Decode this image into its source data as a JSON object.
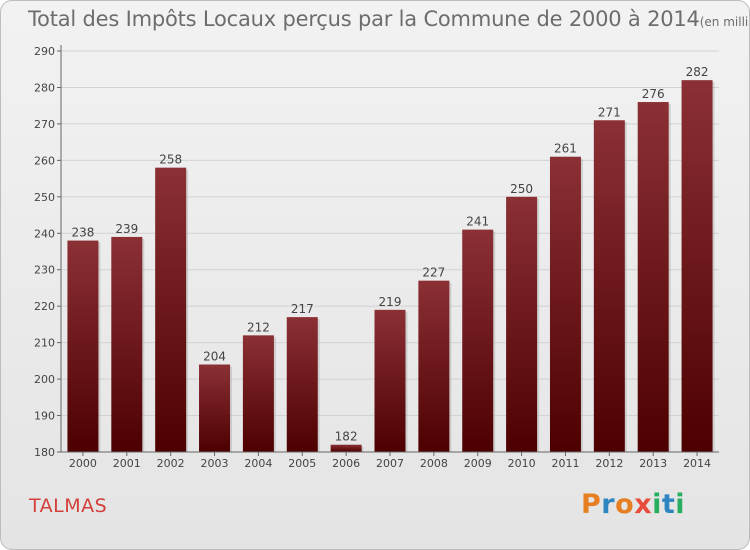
{
  "title": {
    "main": "Total des Impôts Locaux perçus par la Commune de 2000 à 2014",
    "unit": "(en milliers d'€)"
  },
  "commune": "TALMAS",
  "logo": {
    "text": "Proxiti",
    "letters": [
      "P",
      "r",
      "o",
      "x",
      "i",
      "t",
      "i"
    ],
    "colors": [
      "#e67e22",
      "#2e86c1",
      "#e67e22",
      "#e74c3c",
      "#27ae60",
      "#2e86c1",
      "#27ae60"
    ]
  },
  "colors": {
    "bar_top": "#8b3035",
    "bar_bottom": "#4d0000",
    "title": "#6d6d6d",
    "commune": "#d3403a"
  },
  "chart_data": {
    "type": "bar",
    "title": "Total des Impôts Locaux perçus par la Commune de 2000 à 2014",
    "ylabel": "en milliers d'€",
    "xlabel": "",
    "categories": [
      "2000",
      "2001",
      "2002",
      "2003",
      "2004",
      "2005",
      "2006",
      "2007",
      "2008",
      "2009",
      "2010",
      "2011",
      "2012",
      "2013",
      "2014"
    ],
    "values": [
      238,
      239,
      258,
      204,
      212,
      217,
      182,
      219,
      227,
      241,
      250,
      261,
      271,
      276,
      282
    ],
    "ylim": [
      180,
      290
    ],
    "yticks": [
      180,
      190,
      200,
      210,
      220,
      230,
      240,
      250,
      260,
      270,
      280,
      290
    ],
    "grid": true
  }
}
